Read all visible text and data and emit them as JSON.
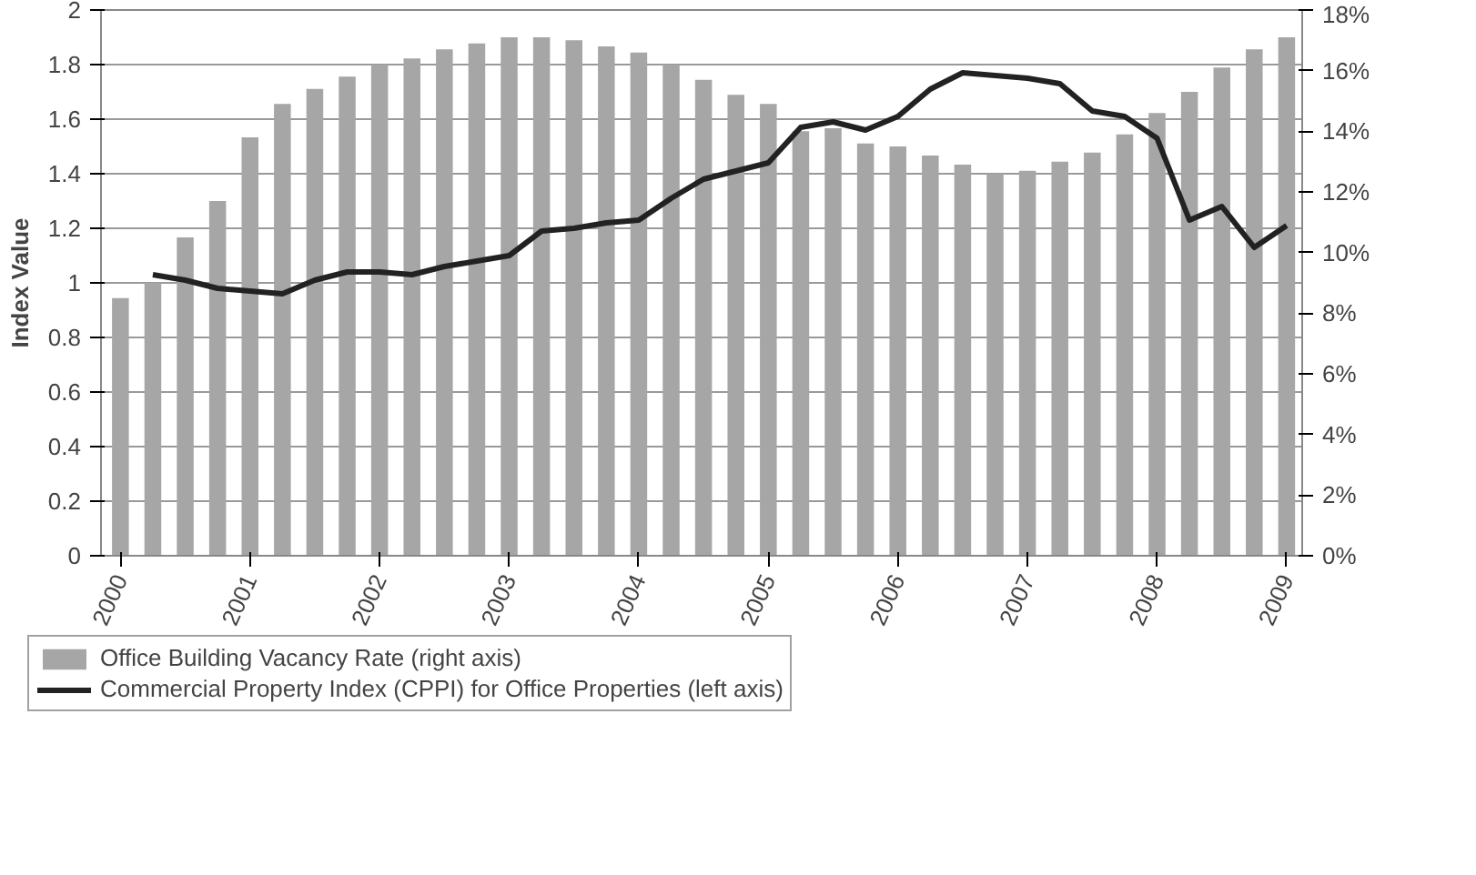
{
  "chart_data": {
    "type": "bar",
    "ylabel": "Index Value",
    "xlim": [
      1999.85,
      2009.12
    ],
    "xticks": [
      2000,
      2001,
      2002,
      2003,
      2004,
      2005,
      2006,
      2007,
      2008,
      2009
    ],
    "ylim": [
      0,
      2
    ],
    "yticks": [
      0,
      0.2,
      0.4,
      0.6,
      0.8,
      1,
      1.2,
      1.4,
      1.6,
      1.8,
      2
    ],
    "y2lim": [
      0,
      18
    ],
    "y2ticks": [
      {
        "value": 0,
        "label": "0%"
      },
      {
        "value": 2,
        "label": "2%"
      },
      {
        "value": 4,
        "label": "4%"
      },
      {
        "value": 6,
        "label": "6%"
      },
      {
        "value": 8,
        "label": "8%"
      },
      {
        "value": 10,
        "label": "10%"
      },
      {
        "value": 12,
        "label": "12%"
      },
      {
        "value": 14,
        "label": "14%"
      },
      {
        "value": 16,
        "label": "16%"
      },
      {
        "value": 18,
        "label": "18%"
      }
    ],
    "grid": "y",
    "legend": "bottom",
    "series": [
      {
        "name": "Office Building Vacancy Rate (right axis)",
        "axis": "y2",
        "color": "#a6a6a6",
        "x": [
          2000,
          2000.25,
          2000.5,
          2000.75,
          2001,
          2001.25,
          2001.5,
          2001.75,
          2002,
          2002.25,
          2002.5,
          2002.75,
          2003,
          2003.25,
          2003.5,
          2003.75,
          2004,
          2004.25,
          2004.5,
          2004.75,
          2005,
          2005.25,
          2005.5,
          2005.75,
          2006,
          2006.25,
          2006.5,
          2006.75,
          2007,
          2007.25,
          2007.5,
          2007.75,
          2008,
          2008.25,
          2008.5,
          2008.75,
          2009
        ],
        "values": [
          8.5,
          9.0,
          10.5,
          11.7,
          13.8,
          14.9,
          15.4,
          15.8,
          16.2,
          16.4,
          16.7,
          16.9,
          17.1,
          17.1,
          17.0,
          16.8,
          16.6,
          16.2,
          15.7,
          15.2,
          14.9,
          14.0,
          14.1,
          13.6,
          13.5,
          13.2,
          12.9,
          12.6,
          12.7,
          13.0,
          13.3,
          13.9,
          14.6,
          15.3,
          16.1,
          16.7,
          17.1
        ]
      },
      {
        "name": "Commercial Property Index (CPPI) for Office Properties (left axis)",
        "type": "line",
        "color": "#222222",
        "x": [
          2000.25,
          2000.5,
          2000.75,
          2001,
          2001.25,
          2001.5,
          2001.75,
          2002,
          2002.25,
          2002.5,
          2002.75,
          2003,
          2003.25,
          2003.5,
          2003.75,
          2004,
          2004.25,
          2004.5,
          2004.75,
          2005,
          2005.25,
          2005.5,
          2005.75,
          2006,
          2006.25,
          2006.5,
          2006.75,
          2007,
          2007.25,
          2007.5,
          2007.75,
          2008,
          2008.25,
          2008.5,
          2008.75,
          2009
        ],
        "values": [
          1.03,
          1.01,
          0.98,
          0.97,
          0.96,
          1.01,
          1.04,
          1.04,
          1.03,
          1.06,
          1.08,
          1.1,
          1.19,
          1.2,
          1.22,
          1.23,
          1.31,
          1.38,
          1.41,
          1.44,
          1.57,
          1.59,
          1.56,
          1.61,
          1.71,
          1.77,
          1.76,
          1.75,
          1.73,
          1.63,
          1.61,
          1.53,
          1.23,
          1.28,
          1.13,
          1.21
        ]
      }
    ]
  }
}
